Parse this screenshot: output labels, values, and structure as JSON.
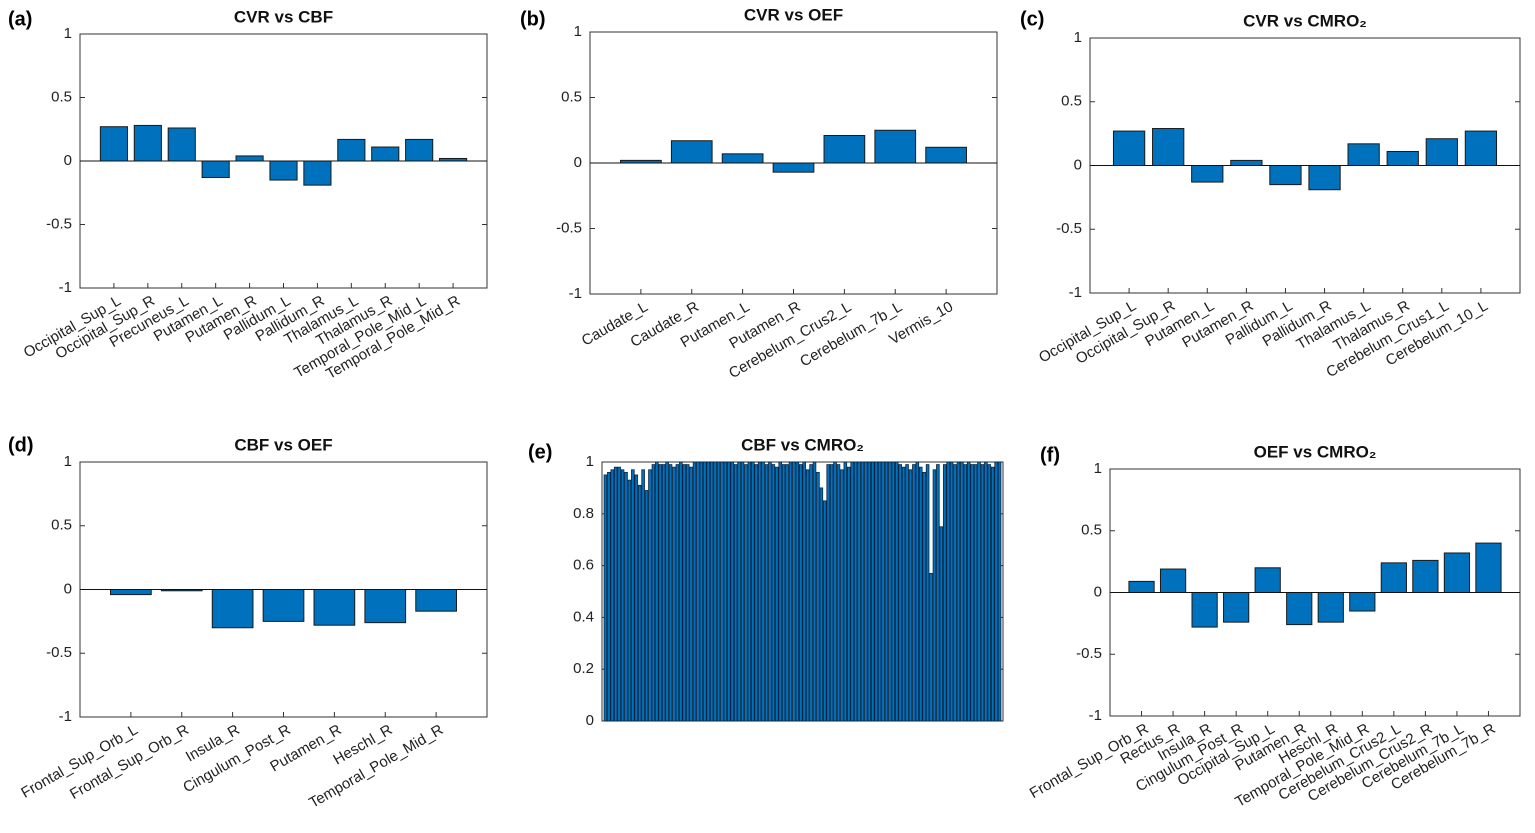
{
  "chart_data": [
    {
      "type": "bar",
      "label": "(a)",
      "title": "CVR vs CBF",
      "color": "#0072BD",
      "categories": [
        "Occipital_Sup_L",
        "Occipital_Sup_R",
        "Precuneus_L",
        "Putamen_L",
        "Putamen_R",
        "Pallidum_L",
        "Pallidum_R",
        "Thalamus_L",
        "Thalamus_R",
        "Temporal_Pole_Mid_L",
        "Temporal_Pole_Mid_R"
      ],
      "values": [
        0.27,
        0.28,
        0.26,
        -0.13,
        0.04,
        -0.15,
        -0.19,
        0.17,
        0.11,
        0.17,
        0.02
      ],
      "ylim": [
        -1,
        1
      ],
      "yticks": [
        -1,
        -0.5,
        0,
        0.5,
        1
      ]
    },
    {
      "type": "bar",
      "label": "(b)",
      "title": "CVR vs OEF",
      "color": "#0072BD",
      "categories": [
        "Caudate_L",
        "Caudate_R",
        "Putamen_L",
        "Putamen_R",
        "Cerebelum_Crus2_L",
        "Cerebelum_7b_L",
        "Vermis_10"
      ],
      "values": [
        0.02,
        0.17,
        0.07,
        -0.07,
        0.21,
        0.25,
        0.12
      ],
      "ylim": [
        -1,
        1
      ],
      "yticks": [
        -1,
        -0.5,
        0,
        0.5,
        1
      ]
    },
    {
      "type": "bar",
      "label": "(c)",
      "title": "CVR vs CMRO₂",
      "color": "#0072BD",
      "categories": [
        "Occipital_Sup_L",
        "Occipital_Sup_R",
        "Putamen_L",
        "Putamen_R",
        "Pallidum_L",
        "Pallidum_R",
        "Thalamus_L",
        "Thalamus_R",
        "Cerebelum_Crus1_L",
        "Cerebelum_10_L"
      ],
      "values": [
        0.27,
        0.29,
        -0.13,
        0.04,
        -0.15,
        -0.19,
        0.17,
        0.11,
        0.21,
        0.27
      ],
      "ylim": [
        -1,
        1
      ],
      "yticks": [
        -1,
        -0.5,
        0,
        0.5,
        1
      ]
    },
    {
      "type": "bar",
      "label": "(d)",
      "title": "CBF vs OEF",
      "color": "#0072BD",
      "categories": [
        "Frontal_Sup_Orb_L",
        "Frontal_Sup_Orb_R",
        "Insula_R",
        "Cingulum_Post_R",
        "Putamen_R",
        "Heschl_R",
        "Temporal_Pole_Mid_R"
      ],
      "values": [
        -0.04,
        -0.01,
        -0.3,
        -0.25,
        -0.28,
        -0.26,
        -0.17
      ],
      "ylim": [
        -1,
        1
      ],
      "yticks": [
        -1,
        -0.5,
        0,
        0.5,
        1
      ]
    },
    {
      "type": "bar",
      "label": "(e)",
      "title": "CBF vs CMRO₂",
      "color": "#0072BD",
      "values": [
        0.95,
        0.96,
        0.97,
        0.98,
        0.98,
        0.97,
        0.96,
        0.93,
        0.97,
        0.95,
        0.91,
        0.97,
        0.89,
        0.97,
        0.99,
        1.0,
        0.99,
        0.99,
        1.0,
        0.99,
        0.98,
        0.99,
        1.0,
        0.99,
        0.99,
        0.98,
        1.0,
        1.0,
        1.0,
        1.0,
        1.0,
        1.0,
        1.0,
        1.0,
        1.0,
        1.0,
        1.0,
        1.0,
        0.99,
        1.0,
        1.0,
        0.99,
        1.0,
        1.0,
        0.99,
        1.0,
        1.0,
        0.99,
        1.0,
        0.99,
        0.98,
        1.0,
        0.99,
        0.99,
        1.0,
        1.0,
        1.0,
        0.99,
        1.0,
        0.97,
        0.99,
        1.0,
        0.96,
        0.9,
        0.85,
        0.99,
        0.99,
        1.0,
        0.99,
        0.97,
        1.0,
        0.98,
        1.0,
        1.0,
        1.0,
        1.0,
        1.0,
        1.0,
        1.0,
        1.0,
        1.0,
        1.0,
        1.0,
        1.0,
        1.0,
        1.0,
        0.99,
        0.98,
        0.99,
        0.97,
        0.99,
        1.0,
        0.98,
        0.96,
        0.99,
        0.57,
        0.97,
        0.99,
        0.75,
        0.99,
        1.0,
        1.0,
        0.99,
        1.0,
        1.0,
        0.99,
        1.0,
        0.99,
        0.99,
        1.0,
        0.99,
        1.0,
        0.99,
        0.98,
        1.0,
        1.0
      ],
      "ylim": [
        0,
        1
      ],
      "yticks": [
        0,
        0.2,
        0.4,
        0.6,
        0.8,
        1
      ]
    },
    {
      "type": "bar",
      "label": "(f)",
      "title": "OEF vs CMRO₂",
      "color": "#0072BD",
      "categories": [
        "Frontal_Sup_Orb_R",
        "Rectus_R",
        "Insula_R",
        "Cingulum_Post_R",
        "Occipital_Sup_L",
        "Putamen_R",
        "Heschl_R",
        "Temporal_Pole_Mid_R",
        "Cerebelum_Crus2_L",
        "Cerebelum_Crus2_R",
        "Cerebelum_7b_L",
        "Cerebelum_7b_R"
      ],
      "values": [
        0.09,
        0.19,
        -0.28,
        -0.24,
        0.2,
        -0.26,
        -0.24,
        -0.15,
        0.24,
        0.26,
        0.32,
        0.4
      ],
      "ylim": [
        -1,
        1
      ],
      "yticks": [
        -1,
        -0.5,
        0,
        0.5,
        1
      ]
    }
  ]
}
